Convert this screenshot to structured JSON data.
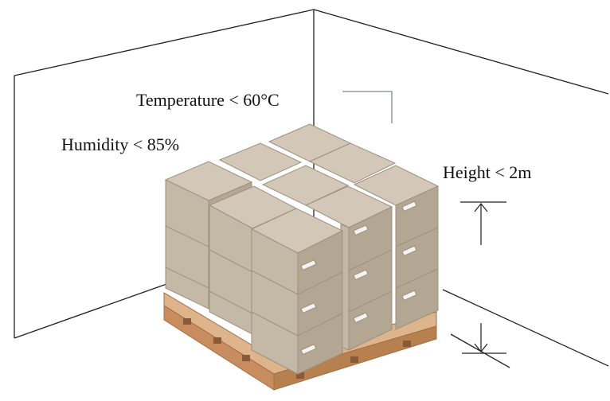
{
  "labels": {
    "temperature": "Temperature < 60°C",
    "humidity": "Humidity < 85%",
    "height": "Height < 2m"
  },
  "colors": {
    "wall_line": "#222222",
    "box_top": "#d3c8b8",
    "box_left": "#c4b8a6",
    "box_right": "#b3a692",
    "box_edge": "#9d917f",
    "pallet_top": "#deb48c",
    "pallet_side": "#c78d5f",
    "pallet_edge": "#a56c44",
    "label_tag": "#f3f3f3",
    "indicator_line": "#7a8a96"
  },
  "icons": [
    "box-icon",
    "pallet-icon",
    "height-arrow-icon"
  ]
}
